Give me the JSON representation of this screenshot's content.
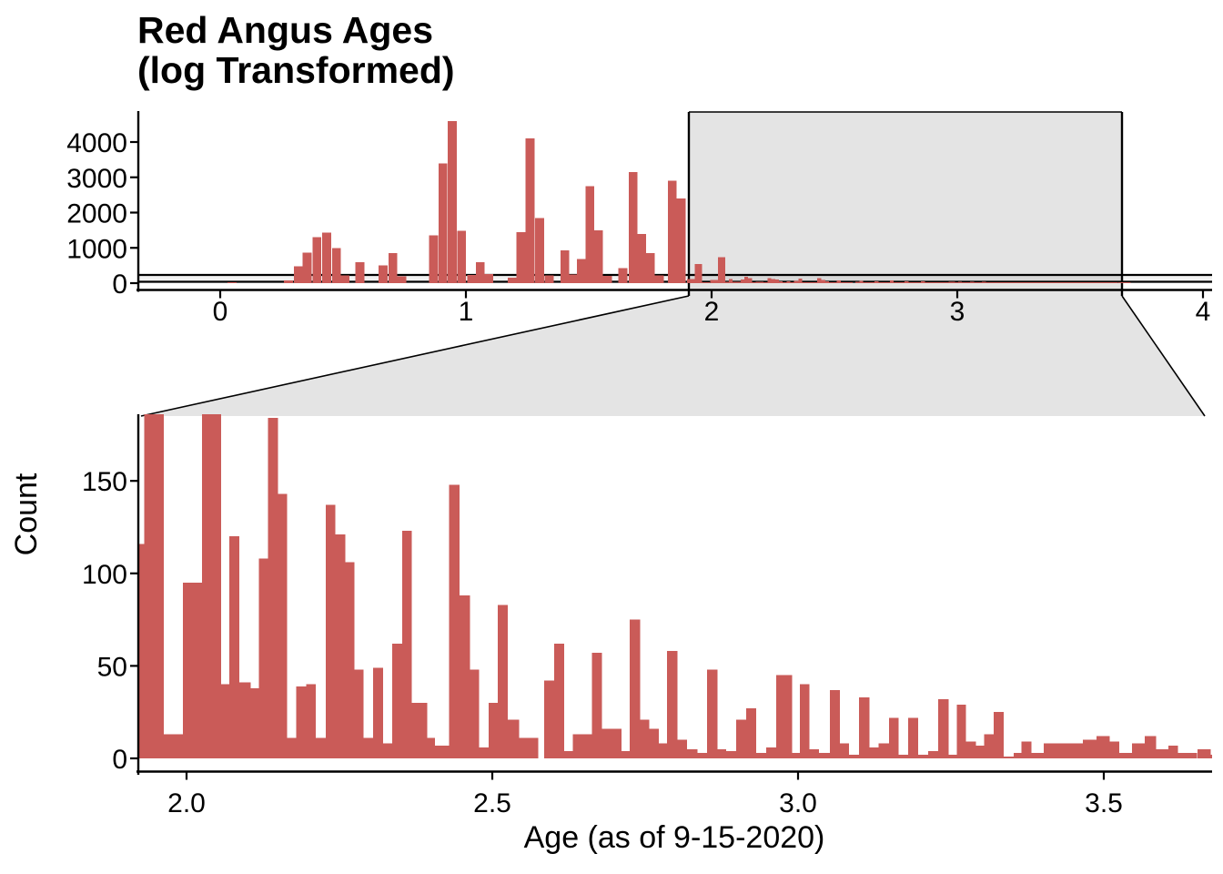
{
  "title": {
    "line1": "Red Angus Ages",
    "line2": "(log Transformed)"
  },
  "colors": {
    "bar": "#CA5B58",
    "zoom_region_fill": "#E4E4E4",
    "band_overlay": "rgba(0,0,0,0.055)",
    "axis": "#000000",
    "background": "#FFFFFF",
    "text": "#000000"
  },
  "chart_data": [
    {
      "type": "bar",
      "name": "overview-histogram",
      "title": "Red Angus Ages (log Transformed)",
      "xlabel": "",
      "ylabel": "",
      "xlim": [
        -0.33,
        4.03
      ],
      "ylim": [
        0,
        4850
      ],
      "xticks": [
        "0",
        "1",
        "2",
        "3",
        "4"
      ],
      "xtick_values": [
        0,
        1,
        2,
        3,
        4
      ],
      "yticks": [
        "0",
        "1000",
        "2000",
        "3000",
        "4000"
      ],
      "ytick_values": [
        0,
        1000,
        2000,
        3000,
        4000
      ],
      "grid": false,
      "legend": "none",
      "binwidth": 0.0367,
      "bars": [
        [
          0.03,
          30
        ],
        [
          0.26,
          80
        ],
        [
          0.3,
          475
        ],
        [
          0.335,
          870
        ],
        [
          0.375,
          1300
        ],
        [
          0.415,
          1430
        ],
        [
          0.455,
          1000
        ],
        [
          0.49,
          220
        ],
        [
          0.55,
          600
        ],
        [
          0.645,
          500
        ],
        [
          0.685,
          850
        ],
        [
          0.72,
          200
        ],
        [
          0.85,
          1350
        ],
        [
          0.888,
          3400
        ],
        [
          0.926,
          4600
        ],
        [
          0.964,
          1480
        ],
        [
          1.005,
          230
        ],
        [
          1.04,
          600
        ],
        [
          1.075,
          260
        ],
        [
          1.17,
          160
        ],
        [
          1.205,
          1450
        ],
        [
          1.243,
          4100
        ],
        [
          1.281,
          1850
        ],
        [
          1.32,
          215
        ],
        [
          1.385,
          930
        ],
        [
          1.42,
          250
        ],
        [
          1.452,
          690
        ],
        [
          1.487,
          2750
        ],
        [
          1.522,
          1500
        ],
        [
          1.557,
          205
        ],
        [
          1.62,
          420
        ],
        [
          1.663,
          3150
        ],
        [
          1.698,
          1400
        ],
        [
          1.733,
          850
        ],
        [
          1.768,
          215
        ],
        [
          1.822,
          2900
        ],
        [
          1.858,
          2400
        ]
      ],
      "zoom_region": {
        "x_range": [
          1.907,
          3.67
        ],
        "y_range": [
          0,
          185
        ]
      }
    },
    {
      "type": "bar",
      "name": "zoomed-histogram",
      "title": "",
      "xlabel": "Age (as of 9-15-2020)",
      "ylabel": "Count",
      "xlim": [
        1.921,
        3.674
      ],
      "ylim": [
        0,
        185
      ],
      "xticks": [
        "2.0",
        "2.5",
        "3.0",
        "3.5"
      ],
      "xtick_values": [
        2.0,
        2.5,
        3.0,
        3.5
      ],
      "yticks": [
        "0",
        "50",
        "100",
        "150"
      ],
      "ytick_values": [
        0,
        50,
        100,
        150
      ],
      "grid": false,
      "legend": "none",
      "binwidth": 0.0312,
      "clip_note": "bars flagged 1 exceed the zoom y-range (true count shown) and are clipped at the panel top",
      "bars": [
        [
          1.9,
          116
        ],
        [
          1.931,
          540,
          1
        ],
        [
          1.962,
          13
        ],
        [
          1.994,
          95
        ],
        [
          2.025,
          730,
          1
        ],
        [
          2.056,
          40
        ],
        [
          2.07,
          120
        ],
        [
          2.086,
          41
        ],
        [
          2.104,
          38
        ],
        [
          2.118,
          108
        ],
        [
          2.133,
          184
        ],
        [
          2.149,
          143
        ],
        [
          2.164,
          11
        ],
        [
          2.179,
          39
        ],
        [
          2.196,
          40
        ],
        [
          2.211,
          11
        ],
        [
          2.228,
          137
        ],
        [
          2.243,
          121
        ],
        [
          2.259,
          106
        ],
        [
          2.274,
          48
        ],
        [
          2.289,
          11
        ],
        [
          2.305,
          49
        ],
        [
          2.321,
          8
        ],
        [
          2.336,
          62
        ],
        [
          2.353,
          123
        ],
        [
          2.368,
          30
        ],
        [
          2.393,
          11
        ],
        [
          2.406,
          7
        ],
        [
          2.429,
          148
        ],
        [
          2.446,
          88
        ],
        [
          2.463,
          48
        ],
        [
          2.478,
          6
        ],
        [
          2.494,
          30
        ],
        [
          2.509,
          83
        ],
        [
          2.525,
          21
        ],
        [
          2.543,
          11
        ],
        [
          2.585,
          42
        ],
        [
          2.601,
          62
        ],
        [
          2.617,
          4
        ],
        [
          2.632,
          13
        ],
        [
          2.648,
          13
        ],
        [
          2.663,
          57
        ],
        [
          2.679,
          16
        ],
        [
          2.695,
          16
        ],
        [
          2.711,
          4
        ],
        [
          2.725,
          75
        ],
        [
          2.741,
          21
        ],
        [
          2.756,
          16
        ],
        [
          2.772,
          8
        ],
        [
          2.786,
          58
        ],
        [
          2.802,
          10
        ],
        [
          2.818,
          5
        ],
        [
          2.835,
          3
        ],
        [
          2.851,
          48
        ],
        [
          2.868,
          5
        ],
        [
          2.882,
          4
        ],
        [
          2.899,
          21
        ],
        [
          2.915,
          27
        ],
        [
          2.931,
          3
        ],
        [
          2.948,
          6
        ],
        [
          2.964,
          45
        ],
        [
          2.99,
          3
        ],
        [
          3.003,
          40
        ],
        [
          3.018,
          5
        ],
        [
          3.034,
          3
        ],
        [
          3.052,
          37
        ],
        [
          3.068,
          8
        ],
        [
          3.083,
          2
        ],
        [
          3.1,
          33
        ],
        [
          3.116,
          6
        ],
        [
          3.132,
          8
        ],
        [
          3.149,
          22
        ],
        [
          3.164,
          2
        ],
        [
          3.18,
          22
        ],
        [
          3.196,
          2
        ],
        [
          3.213,
          4
        ],
        [
          3.229,
          32
        ],
        [
          3.246,
          2
        ],
        [
          3.26,
          29
        ],
        [
          3.274,
          9
        ],
        [
          3.29,
          7
        ],
        [
          3.304,
          13
        ],
        [
          3.32,
          25
        ],
        [
          3.336,
          1
        ],
        [
          3.353,
          3
        ],
        [
          3.365,
          9
        ],
        [
          3.381,
          3
        ],
        [
          3.402,
          8
        ],
        [
          3.424,
          8
        ],
        [
          3.445,
          8
        ],
        [
          3.466,
          10
        ],
        [
          3.488,
          12
        ],
        [
          3.509,
          9
        ],
        [
          3.525,
          3
        ],
        [
          3.546,
          8
        ],
        [
          3.567,
          12
        ],
        [
          3.585,
          5
        ],
        [
          3.606,
          7
        ],
        [
          3.621,
          3
        ],
        [
          3.653,
          5
        ],
        [
          3.674,
          2
        ]
      ]
    }
  ]
}
